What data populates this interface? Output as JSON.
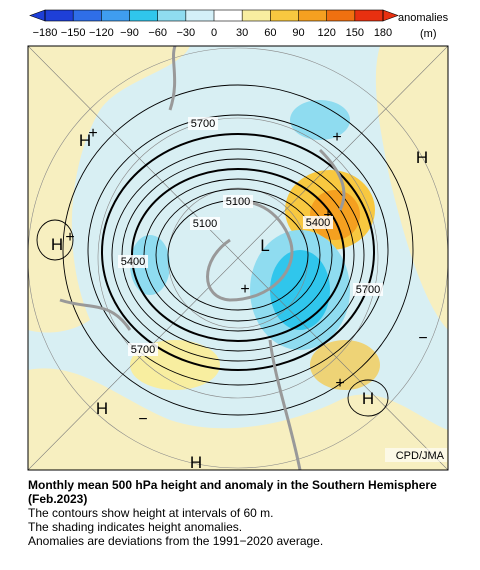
{
  "colorbar": {
    "ticks": [
      {
        "value": -180,
        "label": "−180"
      },
      {
        "value": -150,
        "label": "−150"
      },
      {
        "value": -120,
        "label": "−120"
      },
      {
        "value": -90,
        "label": "−90"
      },
      {
        "value": -60,
        "label": "−60"
      },
      {
        "value": -30,
        "label": "−30"
      },
      0,
      30,
      60,
      90,
      120,
      150,
      180
    ],
    "colors": [
      "#1e3fd8",
      "#2f6ee8",
      "#3f9df0",
      "#30c6ec",
      "#8fdcf0",
      "#d4f0f8",
      "#ffffff",
      "#f8eea0",
      "#f8c840",
      "#f5a020",
      "#f07010",
      "#e83010"
    ],
    "unit_label": [
      "anomalies",
      "(m)"
    ]
  },
  "map": {
    "centers": [
      "H",
      "H",
      "H",
      "H",
      "H",
      "H",
      "L"
    ],
    "signs": [
      "+",
      "+",
      "+",
      "+",
      "+",
      "+",
      "−",
      "−"
    ],
    "contour_labels": [
      5700,
      5100,
      5100,
      5400,
      5400,
      5700,
      5700
    ],
    "credit": "CPD/JMA"
  },
  "caption": {
    "title": "Monthly mean 500 hPa height and anomaly in the Southern Hemisphere (Feb.2023)",
    "lines": [
      "The contours show height at intervals of 60 m.",
      "The shading indicates height anomalies.",
      "Anomalies are deviations from the 1991−2020 average."
    ]
  }
}
